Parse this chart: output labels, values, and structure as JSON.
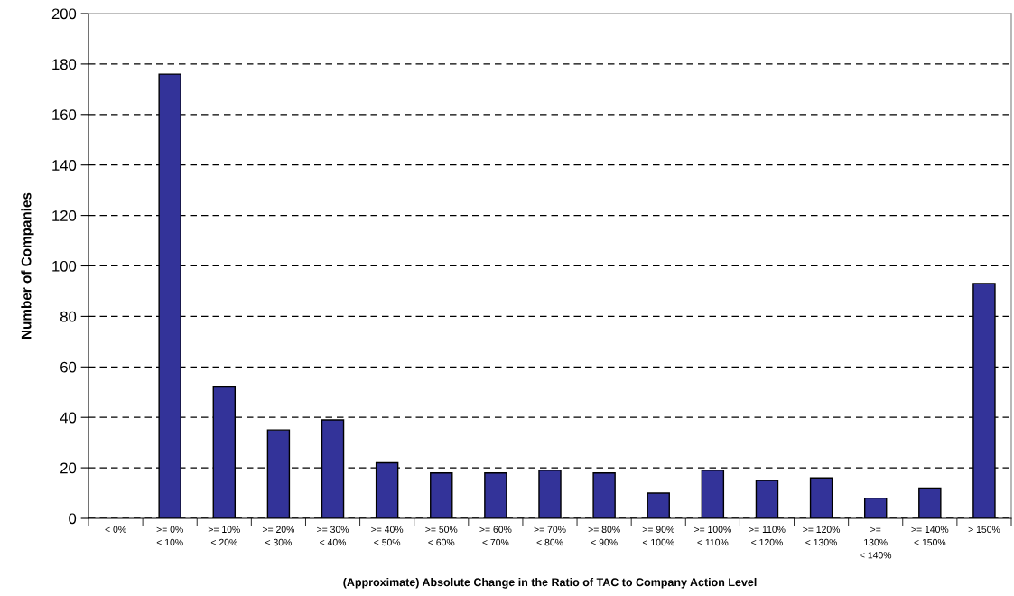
{
  "chart_data": {
    "type": "bar",
    "xlabel": "(Approximate) Absolute Change in the Ratio of TAC to Company Action Level",
    "ylabel": "Number of Companies",
    "categories": [
      "< 0%",
      ">= 0%\n< 10%",
      ">= 10%\n< 20%",
      ">= 20%\n< 30%",
      ">= 30%\n< 40%",
      ">= 40%\n< 50%",
      ">= 50%\n< 60%",
      ">= 60%\n< 70%",
      ">= 70%\n< 80%",
      ">= 80%\n< 90%",
      ">= 90%\n< 100%",
      ">= 100%\n< 110%",
      ">= 110%\n< 120%",
      ">= 120%\n< 130%",
      ">=\n130%\n< 140%",
      ">= 140%\n< 150%",
      "> 150%"
    ],
    "values": [
      0,
      176,
      52,
      35,
      39,
      22,
      18,
      18,
      19,
      18,
      10,
      19,
      15,
      16,
      8,
      12,
      93
    ],
    "color": "#333399",
    "ylim": [
      0,
      200
    ],
    "yticks": [
      0,
      20,
      40,
      60,
      80,
      100,
      120,
      140,
      160,
      180,
      200
    ],
    "grid": "y",
    "line_style": "dashed"
  }
}
